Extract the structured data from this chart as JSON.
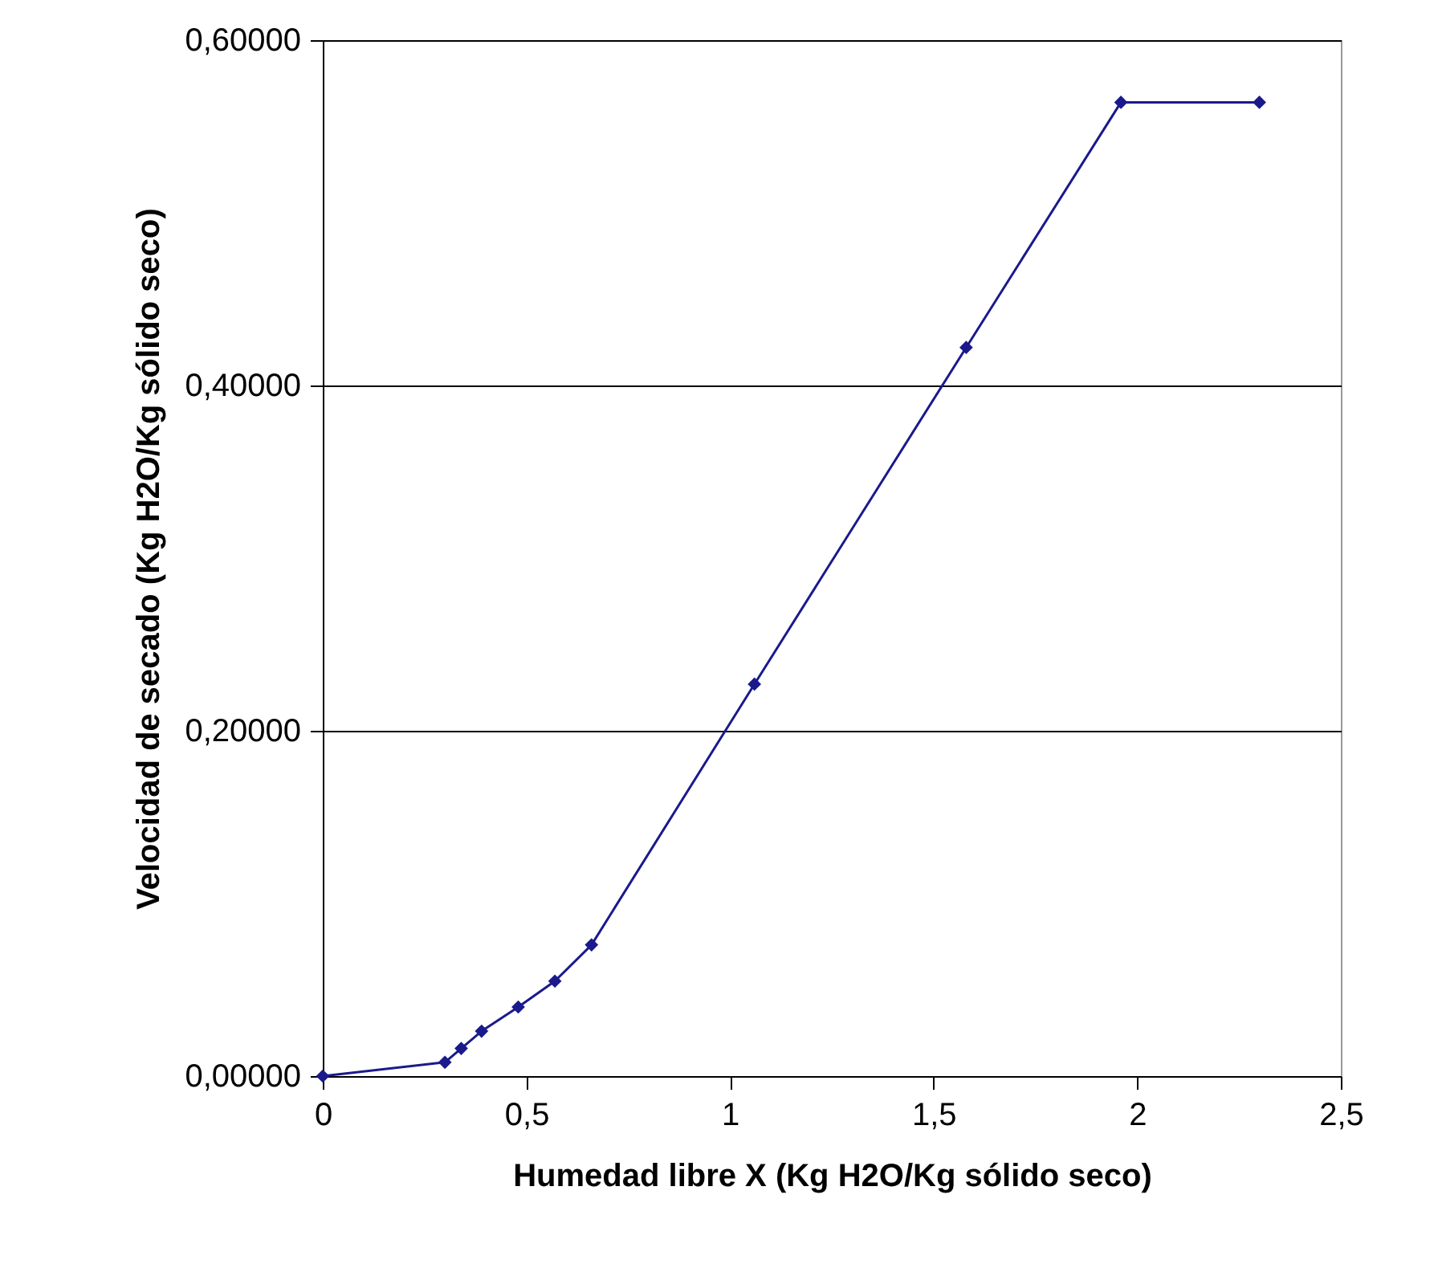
{
  "chart_data": {
    "type": "line",
    "xlabel": "Humedad libre X (Kg H2O/Kg sólido seco)",
    "ylabel": "Velocidad de secado (Kg H2O/Kg sólido seco)",
    "x": [
      0,
      0.3,
      0.34,
      0.39,
      0.48,
      0.57,
      0.66,
      1.06,
      1.58,
      1.96,
      2.3
    ],
    "series": [
      {
        "color": "#1a1a8c",
        "values": [
          0,
          0.008,
          0.016,
          0.026,
          0.04,
          0.055,
          0.076,
          0.227,
          0.422,
          0.564,
          0.564
        ]
      }
    ],
    "xlim": [
      0,
      2.5
    ],
    "ylim": [
      0,
      0.6
    ],
    "xticks": [
      0,
      {
        "value": 0.5,
        "label": "0,5"
      },
      1,
      {
        "value": 1.5,
        "label": "1,5"
      },
      2,
      {
        "value": 2.5,
        "label": "2,5"
      }
    ],
    "yticks": [
      {
        "value": 0,
        "label": "0,00000"
      },
      {
        "value": 0.2,
        "label": "0,20000"
      },
      {
        "value": 0.4,
        "label": "0,40000"
      },
      {
        "value": 0.6,
        "label": "0,60000"
      }
    ],
    "grid": "y",
    "marker": "diamond",
    "line_style": "solid"
  }
}
